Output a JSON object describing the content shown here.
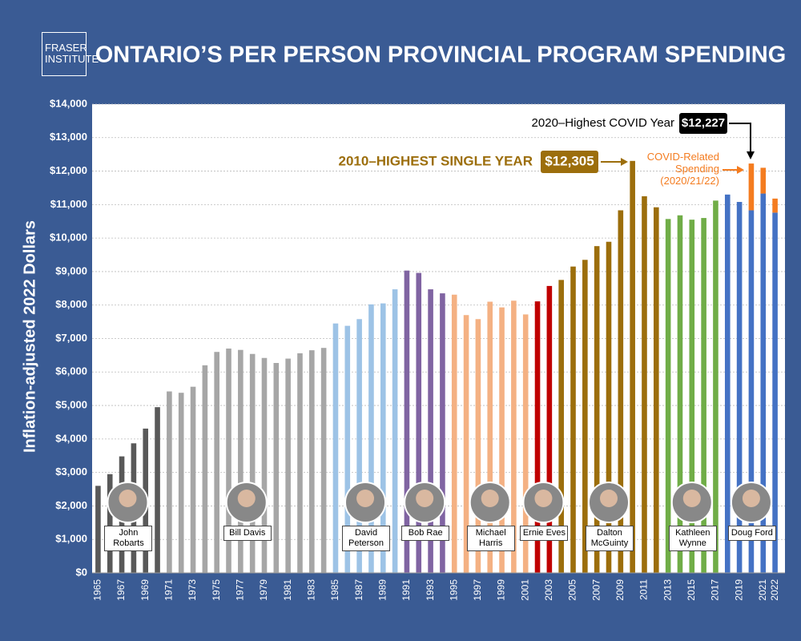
{
  "logo": "FRASER INSTITUTE",
  "chart_data": {
    "type": "bar",
    "title": "ONTARIO’S PER PERSON PROVINCIAL PROGRAM SPENDING",
    "ylabel": "Inflation-adjusted 2022 Dollars",
    "categories": [
      "1965",
      null,
      "1967",
      null,
      "1969",
      null,
      "1971",
      null,
      "1973",
      null,
      "1975",
      null,
      "1977",
      null,
      "1979",
      null,
      "1981",
      null,
      "1983",
      null,
      "1985",
      null,
      "1987",
      null,
      "1989",
      null,
      "1991",
      null,
      "1993",
      null,
      "1995",
      null,
      "1997",
      null,
      "1999",
      null,
      "2001",
      null,
      "2003",
      null,
      "2005",
      null,
      "2007",
      null,
      "2009",
      null,
      "2011",
      null,
      "2013",
      null,
      "2015",
      null,
      "2017",
      null,
      "2019",
      null,
      "2021",
      "2022"
    ],
    "ylim": [
      0,
      14000
    ],
    "yticks": [
      {
        "value": 0,
        "label": "$0"
      },
      {
        "value": 1000,
        "label": "$1,000"
      },
      {
        "value": 2000,
        "label": "$2,000"
      },
      {
        "value": 3000,
        "label": "$3,000"
      },
      {
        "value": 4000,
        "label": "$4,000"
      },
      {
        "value": 5000,
        "label": "$5,000"
      },
      {
        "value": 6000,
        "label": "$6,000"
      },
      {
        "value": 7000,
        "label": "$7,000"
      },
      {
        "value": 8000,
        "label": "$8,000"
      },
      {
        "value": 9000,
        "label": "$9,000"
      },
      {
        "value": 10000,
        "label": "$10,000"
      },
      {
        "value": 11000,
        "label": "$11,000"
      },
      {
        "value": 12000,
        "label": "$12,000"
      },
      {
        "value": 13000,
        "label": "$13,000"
      },
      {
        "value": 14000,
        "label": "$14,000"
      }
    ],
    "grid": true,
    "series": [
      {
        "name": "John Robarts",
        "color": "#595959",
        "values": [
          2600,
          2950,
          3480,
          3870,
          4310,
          4950,
          null,
          null,
          null,
          null,
          null,
          null,
          null,
          null,
          null,
          null,
          null,
          null,
          null,
          null,
          null,
          null,
          null,
          null,
          null,
          null,
          null,
          null,
          null,
          null,
          null,
          null,
          null,
          null,
          null,
          null,
          null,
          null,
          null,
          null,
          null,
          null,
          null,
          null,
          null,
          null,
          null,
          null,
          null,
          null,
          null,
          null,
          null,
          null,
          null,
          null,
          null,
          null
        ]
      },
      {
        "name": "Bill Davis",
        "color": "#a6a6a6",
        "values": [
          null,
          null,
          null,
          null,
          null,
          null,
          5420,
          5380,
          5560,
          6200,
          6600,
          6700,
          6660,
          6540,
          6420,
          6270,
          6400,
          6560,
          6650,
          6720,
          null,
          null,
          null,
          null,
          null,
          null,
          null,
          null,
          null,
          null,
          null,
          null,
          null,
          null,
          null,
          null,
          null,
          null,
          null,
          null,
          null,
          null,
          null,
          null,
          null,
          null,
          null,
          null,
          null,
          null,
          null,
          null,
          null,
          null,
          null,
          null,
          null,
          null
        ]
      },
      {
        "name": "David Peterson",
        "color": "#9dc3e6",
        "values": [
          null,
          null,
          null,
          null,
          null,
          null,
          null,
          null,
          null,
          null,
          null,
          null,
          null,
          null,
          null,
          null,
          null,
          null,
          null,
          null,
          7450,
          7380,
          7580,
          8020,
          8050,
          8470,
          null,
          null,
          null,
          null,
          null,
          null,
          null,
          null,
          null,
          null,
          null,
          null,
          null,
          null,
          null,
          null,
          null,
          null,
          null,
          null,
          null,
          null,
          null,
          null,
          null,
          null,
          null,
          null,
          null,
          null,
          null,
          null
        ]
      },
      {
        "name": "Bob Rae",
        "color": "#8064a2",
        "values": [
          null,
          null,
          null,
          null,
          null,
          null,
          null,
          null,
          null,
          null,
          null,
          null,
          null,
          null,
          null,
          null,
          null,
          null,
          null,
          null,
          null,
          null,
          null,
          null,
          null,
          null,
          9030,
          8960,
          8470,
          8350,
          null,
          null,
          null,
          null,
          null,
          null,
          null,
          null,
          null,
          null,
          null,
          null,
          null,
          null,
          null,
          null,
          null,
          null,
          null,
          null,
          null,
          null,
          null,
          null,
          null,
          null,
          null,
          null
        ]
      },
      {
        "name": "Michael Harris",
        "color": "#f4b183",
        "values": [
          null,
          null,
          null,
          null,
          null,
          null,
          null,
          null,
          null,
          null,
          null,
          null,
          null,
          null,
          null,
          null,
          null,
          null,
          null,
          null,
          null,
          null,
          null,
          null,
          null,
          null,
          null,
          null,
          null,
          null,
          8310,
          7700,
          7580,
          8100,
          7930,
          8130,
          7720,
          null,
          null,
          null,
          null,
          null,
          null,
          null,
          null,
          null,
          null,
          null,
          null,
          null,
          null,
          null,
          null,
          null,
          null,
          null,
          null,
          null
        ]
      },
      {
        "name": "Ernie Eves",
        "color": "#c00000",
        "values": [
          null,
          null,
          null,
          null,
          null,
          null,
          null,
          null,
          null,
          null,
          null,
          null,
          null,
          null,
          null,
          null,
          null,
          null,
          null,
          null,
          null,
          null,
          null,
          null,
          null,
          null,
          null,
          null,
          null,
          null,
          null,
          null,
          null,
          null,
          null,
          null,
          null,
          8110,
          8570,
          null,
          null,
          null,
          null,
          null,
          null,
          null,
          null,
          null,
          null,
          null,
          null,
          null,
          null,
          null,
          null,
          null,
          null,
          null
        ]
      },
      {
        "name": "Dalton McGuinty",
        "color": "#9c6e0c",
        "values": [
          null,
          null,
          null,
          null,
          null,
          null,
          null,
          null,
          null,
          null,
          null,
          null,
          null,
          null,
          null,
          null,
          null,
          null,
          null,
          null,
          null,
          null,
          null,
          null,
          null,
          null,
          null,
          null,
          null,
          null,
          null,
          null,
          null,
          null,
          null,
          null,
          null,
          null,
          null,
          8750,
          9150,
          9350,
          9760,
          9890,
          10830,
          12305,
          11250,
          10920,
          null,
          null,
          null,
          null,
          null,
          null,
          null,
          null,
          null,
          null
        ]
      },
      {
        "name": "Kathleen Wynne",
        "color": "#70ad47",
        "values": [
          null,
          null,
          null,
          null,
          null,
          null,
          null,
          null,
          null,
          null,
          null,
          null,
          null,
          null,
          null,
          null,
          null,
          null,
          null,
          null,
          null,
          null,
          null,
          null,
          null,
          null,
          null,
          null,
          null,
          null,
          null,
          null,
          null,
          null,
          null,
          null,
          null,
          null,
          null,
          null,
          null,
          null,
          null,
          null,
          null,
          null,
          null,
          null,
          10570,
          10680,
          10550,
          10600,
          11120,
          null,
          null,
          null,
          null,
          null
        ]
      },
      {
        "name": "Doug Ford",
        "color": "#4472c4",
        "values": [
          null,
          null,
          null,
          null,
          null,
          null,
          null,
          null,
          null,
          null,
          null,
          null,
          null,
          null,
          null,
          null,
          null,
          null,
          null,
          null,
          null,
          null,
          null,
          null,
          null,
          null,
          null,
          null,
          null,
          null,
          null,
          null,
          null,
          null,
          null,
          null,
          null,
          null,
          null,
          null,
          null,
          null,
          null,
          null,
          null,
          null,
          null,
          null,
          null,
          null,
          null,
          null,
          null,
          11300,
          11080,
          10830,
          11330,
          10760
        ]
      },
      {
        "name": "COVID-Related Spending (2020/21/22)",
        "color": "#f47c20",
        "values": [
          null,
          null,
          null,
          null,
          null,
          null,
          null,
          null,
          null,
          null,
          null,
          null,
          null,
          null,
          null,
          null,
          null,
          null,
          null,
          null,
          null,
          null,
          null,
          null,
          null,
          null,
          null,
          null,
          null,
          null,
          null,
          null,
          null,
          null,
          null,
          null,
          null,
          null,
          null,
          null,
          null,
          null,
          null,
          null,
          null,
          null,
          null,
          null,
          null,
          null,
          null,
          null,
          null,
          null,
          null,
          1397,
          770,
          420
        ]
      }
    ],
    "annotations": [
      {
        "text": "2010–HIGHEST SINGLE YEAR",
        "label": "$12,305"
      },
      {
        "text": "2020–Highest COVID Year",
        "label": "$12,227"
      }
    ]
  }
}
